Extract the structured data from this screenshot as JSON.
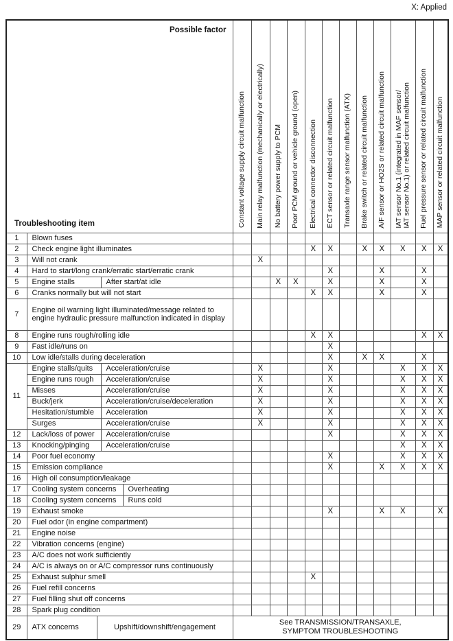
{
  "legend": "X: Applied",
  "applied_mark": "X",
  "header": {
    "possible_factor_label": "Possible factor",
    "troubleshooting_item_label": "Troubleshooting item",
    "factors": [
      "Constant voltage supply circuit malfunction",
      "Main relay malfunction (mechanically or electrically)",
      "No battery power supply to PCM",
      "Poor PCM ground or vehicle ground (open)",
      "Electrical connector disconnection",
      "ECT sensor or related circuit malfunction",
      "Transaxle range sensor malfunction (ATX)",
      "Brake switch or related circuit malfunction",
      "A/F sensor or HO2S or related circuit malfunction",
      "IAT sensor No.1 (integrated in MAF sensor/\nIAT sensor No.1) or related circuit malfunction",
      "Fuel pressure sensor or related circuit malfunction",
      "MAP sensor or related circuit malfunction"
    ]
  },
  "rows": [
    {
      "num": "1",
      "item": "Blown fuses",
      "marks": []
    },
    {
      "num": "2",
      "item": "Check engine light illuminates",
      "marks": [
        5,
        6,
        8,
        9,
        10,
        11,
        12
      ]
    },
    {
      "num": "3",
      "item": "Will not crank",
      "marks": [
        2
      ]
    },
    {
      "num": "4",
      "item": "Hard to start/long crank/erratic start/erratic crank",
      "marks": [
        6,
        9,
        11
      ]
    },
    {
      "num": "5",
      "item": "Engine stalls",
      "sub": "After start/at idle",
      "split": 108,
      "marks": [
        3,
        4,
        6,
        9,
        11
      ]
    },
    {
      "num": "6",
      "item": "Cranks normally but will not start",
      "marks": [
        5,
        6,
        9,
        11
      ]
    },
    {
      "num": "7",
      "item": "Engine oil warning light illuminated/message related to engine hydraulic pressure malfunction indicated in display",
      "h": 46,
      "marks": []
    },
    {
      "num": "8",
      "item": "Engine runs rough/rolling idle",
      "marks": [
        5,
        6,
        11,
        12
      ]
    },
    {
      "num": "9",
      "item": "Fast idle/runs on",
      "marks": [
        6
      ]
    },
    {
      "num": "10",
      "item": "Low idle/stalls during deceleration",
      "marks": [
        6,
        8,
        9,
        11
      ]
    },
    {
      "num": "11",
      "group": 6,
      "item": "Engine stalls/quits",
      "sub": "Acceleration/cruise",
      "split": 108,
      "marks": [
        2,
        6,
        10,
        11,
        12
      ]
    },
    {
      "cont": true,
      "item": "Engine runs rough",
      "sub": "Acceleration/cruise",
      "split": 108,
      "marks": [
        2,
        6,
        10,
        11,
        12
      ]
    },
    {
      "cont": true,
      "item": "Misses",
      "sub": "Acceleration/cruise",
      "split": 108,
      "marks": [
        2,
        6,
        10,
        11,
        12
      ]
    },
    {
      "cont": true,
      "item": "Buck/jerk",
      "sub": "Acceleration/cruise/deceleration",
      "split": 108,
      "marks": [
        2,
        6,
        10,
        11,
        12
      ]
    },
    {
      "cont": true,
      "item": "Hesitation/stumble",
      "sub": "Acceleration",
      "split": 108,
      "marks": [
        2,
        6,
        10,
        11,
        12
      ]
    },
    {
      "cont": true,
      "item": "Surges",
      "sub": "Acceleration/cruise",
      "split": 108,
      "marks": [
        2,
        6,
        10,
        11,
        12
      ]
    },
    {
      "num": "12",
      "item": "Lack/loss of power",
      "sub": "Acceleration/cruise",
      "split": 108,
      "marks": [
        6,
        10,
        11,
        12
      ]
    },
    {
      "num": "13",
      "item": "Knocking/pinging",
      "sub": "Acceleration/cruise",
      "split": 108,
      "marks": [
        10,
        11,
        12
      ]
    },
    {
      "num": "14",
      "item": "Poor fuel economy",
      "marks": [
        6,
        10,
        11,
        12
      ]
    },
    {
      "num": "15",
      "item": "Emission compliance",
      "marks": [
        6,
        9,
        10,
        11,
        12
      ]
    },
    {
      "num": "16",
      "item": "High oil consumption/leakage",
      "marks": []
    },
    {
      "num": "17",
      "item": "Cooling system concerns",
      "sub": "Overheating",
      "split": 140,
      "marks": []
    },
    {
      "num": "18",
      "item": "Cooling system concerns",
      "sub": "Runs cold",
      "split": 140,
      "marks": []
    },
    {
      "num": "19",
      "item": "Exhaust smoke",
      "marks": [
        6,
        9,
        10,
        12
      ]
    },
    {
      "num": "20",
      "item": "Fuel odor (in engine compartment)",
      "marks": []
    },
    {
      "num": "21",
      "item": "Engine noise",
      "marks": []
    },
    {
      "num": "22",
      "item": "Vibration concerns (engine)",
      "marks": []
    },
    {
      "num": "23",
      "item": "A/C does not work sufficiently",
      "marks": []
    },
    {
      "num": "24",
      "item": "A/C is always on or A/C compressor runs continuously",
      "marks": []
    },
    {
      "num": "25",
      "item": "Exhaust sulphur smell",
      "marks": [
        5
      ]
    },
    {
      "num": "26",
      "item": "Fuel refill concerns",
      "marks": []
    },
    {
      "num": "27",
      "item": "Fuel filling shut off concerns",
      "marks": []
    },
    {
      "num": "28",
      "item": "Spark plug condition",
      "marks": []
    },
    {
      "num": "29",
      "item": "ATX concerns",
      "sub": "Upshift/downshift/engagement",
      "split": 102,
      "subCentered": true,
      "h": 34,
      "spanNote": "See TRANSMISSION/TRANSAXLE,\nSYMPTOM TROUBLESHOOTING",
      "marks": []
    }
  ]
}
